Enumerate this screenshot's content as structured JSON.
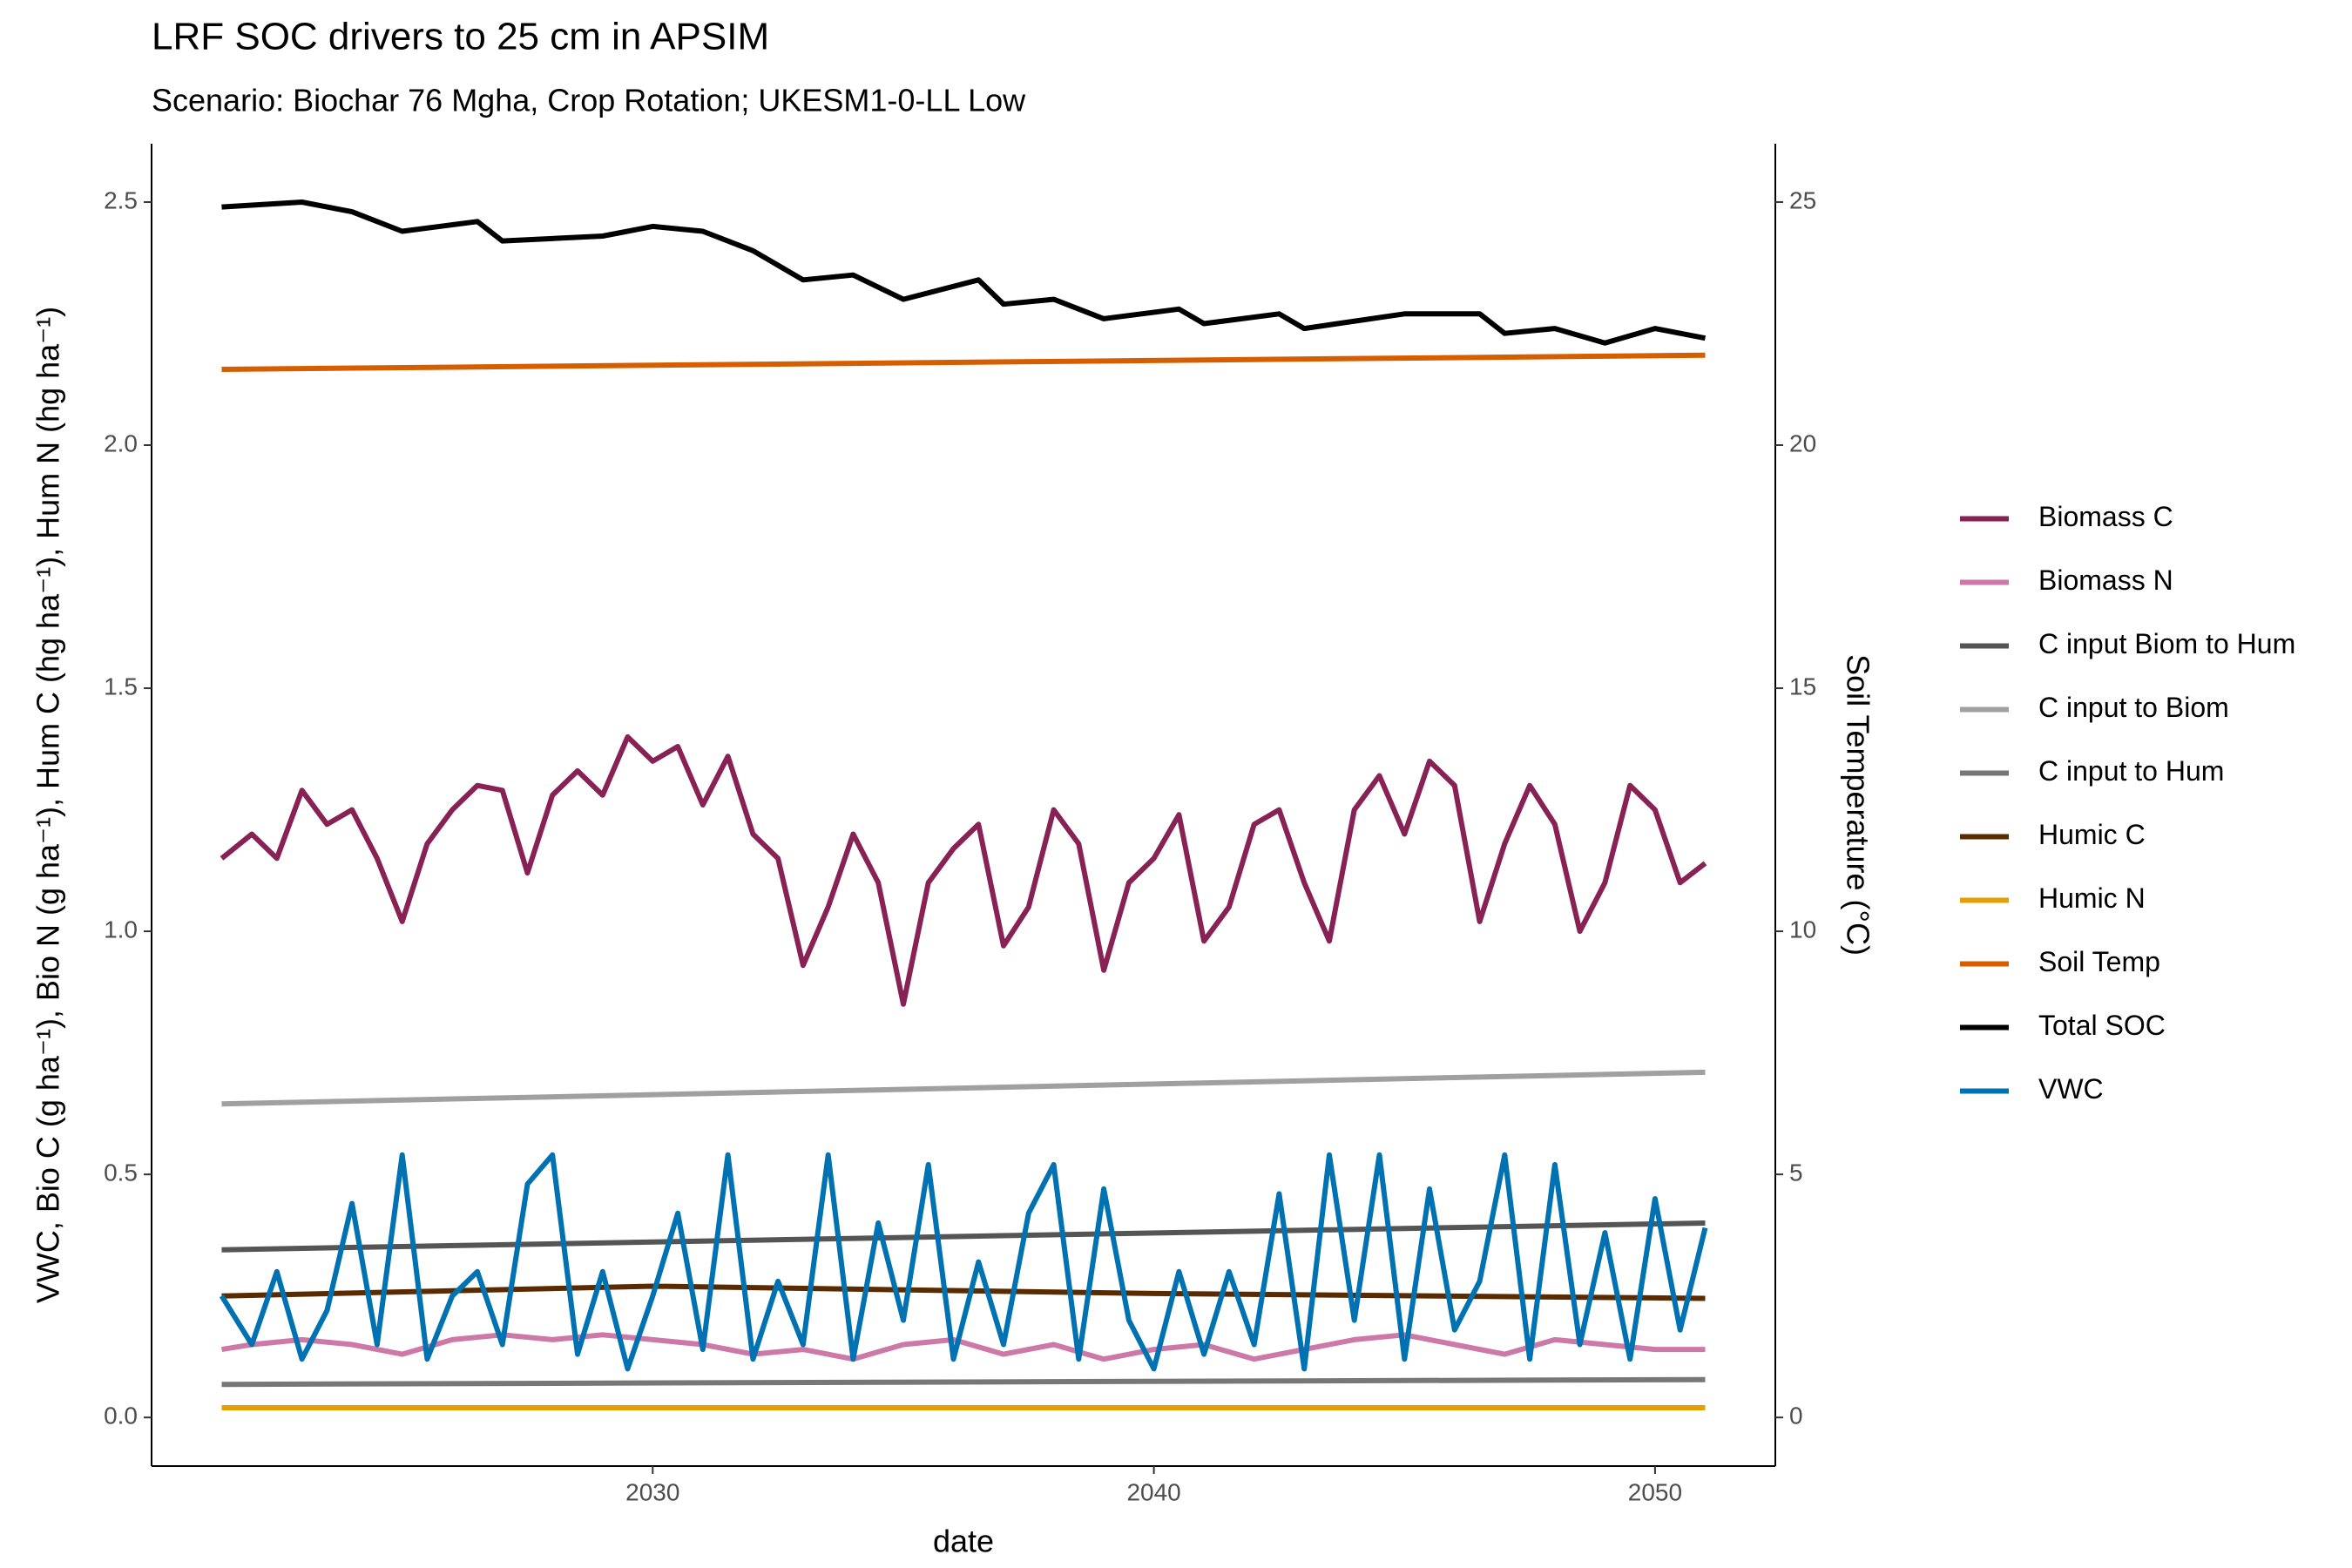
{
  "chart_data": {
    "type": "line",
    "title": "LRF SOC drivers to 25 cm in APSIM",
    "subtitle": "Scenario: Biochar 76 Mgha, Crop Rotation; UKESM1-0-LL Low",
    "x_label": "date",
    "y_label": "VWC, Bio C (g ha⁻¹), Bio N (g ha⁻¹), Hum C (hg ha⁻¹), Hum N (hg ha⁻¹)",
    "y2_label": "Soil Temperature (°C)",
    "xlim": [
      2020,
      2052.4
    ],
    "xticks": [
      2030,
      2040,
      2050
    ],
    "ylim": [
      -0.1,
      2.62
    ],
    "yticks": [
      {
        "value": 0,
        "label": "0.0"
      },
      0.5,
      {
        "value": 1,
        "label": "1.0"
      },
      1.5,
      {
        "value": 2,
        "label": "2.0"
      },
      2.5
    ],
    "y2lim": [
      -1,
      26.2
    ],
    "y2ticks": [
      0,
      5,
      10,
      15,
      20,
      25
    ],
    "grid": false,
    "legend_position": "right",
    "series": [
      {
        "name": "Biomass C",
        "color": "#882255",
        "x": [
          2021.4,
          2022,
          2022.5,
          2023,
          2023.5,
          2024,
          2024.5,
          2025,
          2025.5,
          2026,
          2026.5,
          2027,
          2027.5,
          2028,
          2028.5,
          2029,
          2029.5,
          2030,
          2030.5,
          2031,
          2031.5,
          2032,
          2032.5,
          2033,
          2033.5,
          2034,
          2034.5,
          2035,
          2035.5,
          2036,
          2036.5,
          2037,
          2037.5,
          2038,
          2038.5,
          2039,
          2039.5,
          2040,
          2040.5,
          2041,
          2041.5,
          2042,
          2042.5,
          2043,
          2043.5,
          2044,
          2044.5,
          2045,
          2045.5,
          2046,
          2046.5,
          2047,
          2047.5,
          2048,
          2048.5,
          2049,
          2049.5,
          2050,
          2050.5,
          2051
        ],
        "values": [
          1.15,
          1.2,
          1.15,
          1.29,
          1.22,
          1.25,
          1.15,
          1.02,
          1.18,
          1.25,
          1.3,
          1.29,
          1.12,
          1.28,
          1.33,
          1.28,
          1.4,
          1.35,
          1.38,
          1.26,
          1.36,
          1.2,
          1.15,
          0.93,
          1.05,
          1.2,
          1.1,
          0.85,
          1.1,
          1.17,
          1.22,
          0.97,
          1.05,
          1.25,
          1.18,
          0.92,
          1.1,
          1.15,
          1.24,
          0.98,
          1.05,
          1.22,
          1.25,
          1.1,
          0.98,
          1.25,
          1.32,
          1.2,
          1.35,
          1.3,
          1.02,
          1.18,
          1.3,
          1.22,
          1.0,
          1.1,
          1.3,
          1.25,
          1.1,
          1.14
        ]
      },
      {
        "name": "Biomass N",
        "color": "#CC79A7",
        "x": [
          2021.4,
          2022,
          2023,
          2024,
          2025,
          2026,
          2027,
          2028,
          2029,
          2030,
          2031,
          2032,
          2033,
          2034,
          2035,
          2036,
          2037,
          2038,
          2039,
          2040,
          2041,
          2042,
          2043,
          2044,
          2045,
          2046,
          2047,
          2048,
          2049,
          2050,
          2051
        ],
        "values": [
          0.14,
          0.15,
          0.16,
          0.15,
          0.13,
          0.16,
          0.17,
          0.16,
          0.17,
          0.16,
          0.15,
          0.13,
          0.14,
          0.12,
          0.15,
          0.16,
          0.13,
          0.15,
          0.12,
          0.14,
          0.15,
          0.12,
          0.14,
          0.16,
          0.17,
          0.15,
          0.13,
          0.16,
          0.15,
          0.14,
          0.14
        ]
      },
      {
        "name": "C input Biom to Hum",
        "color": "#555555",
        "x": [
          2021.4,
          2051
        ],
        "values": [
          0.345,
          0.4
        ]
      },
      {
        "name": "C input to Biom",
        "color": "#A0A0A0",
        "x": [
          2021.4,
          2051
        ],
        "values": [
          0.645,
          0.71
        ]
      },
      {
        "name": "C input to Hum",
        "color": "#777777",
        "x": [
          2021.4,
          2051
        ],
        "values": [
          0.068,
          0.078
        ]
      },
      {
        "name": "Humic C",
        "color": "#5A2A00",
        "x": [
          2021.4,
          2030,
          2040,
          2051
        ],
        "values": [
          0.25,
          0.27,
          0.255,
          0.245
        ]
      },
      {
        "name": "Humic N",
        "color": "#E69F00",
        "x": [
          2021.4,
          2051
        ],
        "values": [
          0.02,
          0.02
        ]
      },
      {
        "name": "Soil Temp",
        "color": "#D55E00",
        "axis": "y2",
        "x": [
          2021.4,
          2051
        ],
        "values": [
          21.56,
          21.85
        ]
      },
      {
        "name": "Total SOC",
        "color": "#000000",
        "x": [
          2021.4,
          2023,
          2024,
          2025,
          2026.5,
          2027,
          2029,
          2030,
          2031,
          2032,
          2033,
          2034,
          2035,
          2036.5,
          2037,
          2038,
          2039,
          2040.5,
          2041,
          2042.5,
          2043,
          2045,
          2046.5,
          2047,
          2048,
          2049,
          2050,
          2051
        ],
        "values": [
          2.49,
          2.5,
          2.48,
          2.44,
          2.46,
          2.42,
          2.43,
          2.45,
          2.44,
          2.4,
          2.34,
          2.35,
          2.3,
          2.34,
          2.29,
          2.3,
          2.26,
          2.28,
          2.25,
          2.27,
          2.24,
          2.27,
          2.27,
          2.23,
          2.24,
          2.21,
          2.24,
          2.22
        ]
      },
      {
        "name": "VWC",
        "color": "#0072B2",
        "x": [
          2021.4,
          2022,
          2022.5,
          2023,
          2023.5,
          2024,
          2024.5,
          2025,
          2025.5,
          2026,
          2026.5,
          2027,
          2027.5,
          2028,
          2028.5,
          2029,
          2029.5,
          2030,
          2030.5,
          2031,
          2031.5,
          2032,
          2032.5,
          2033,
          2033.5,
          2034,
          2034.5,
          2035,
          2035.5,
          2036,
          2036.5,
          2037,
          2037.5,
          2038,
          2038.5,
          2039,
          2039.5,
          2040,
          2040.5,
          2041,
          2041.5,
          2042,
          2042.5,
          2043,
          2043.5,
          2044,
          2044.5,
          2045,
          2045.5,
          2046,
          2046.5,
          2047,
          2047.5,
          2048,
          2048.5,
          2049,
          2049.5,
          2050,
          2050.5,
          2051
        ],
        "values": [
          0.25,
          0.15,
          0.3,
          0.12,
          0.22,
          0.44,
          0.15,
          0.54,
          0.12,
          0.25,
          0.3,
          0.15,
          0.48,
          0.54,
          0.13,
          0.3,
          0.1,
          0.25,
          0.42,
          0.14,
          0.54,
          0.12,
          0.28,
          0.15,
          0.54,
          0.12,
          0.4,
          0.2,
          0.52,
          0.12,
          0.32,
          0.15,
          0.42,
          0.52,
          0.12,
          0.47,
          0.2,
          0.1,
          0.3,
          0.13,
          0.3,
          0.15,
          0.46,
          0.1,
          0.54,
          0.2,
          0.54,
          0.12,
          0.47,
          0.18,
          0.28,
          0.54,
          0.12,
          0.52,
          0.15,
          0.38,
          0.12,
          0.45,
          0.18,
          0.39
        ]
      }
    ]
  }
}
